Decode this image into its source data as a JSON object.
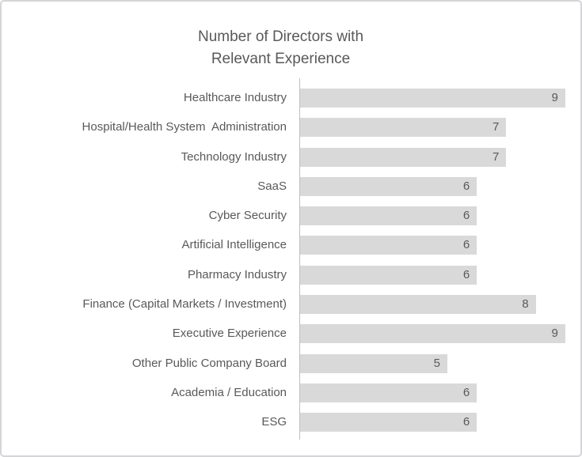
{
  "chart_data": {
    "type": "bar",
    "orientation": "horizontal",
    "title": "Number of Directors with Relevant Experience",
    "title_lines": [
      "Number of Directors with",
      "Relevant Experience"
    ],
    "categories": [
      "Healthcare Industry",
      "Hospital/Health System  Administration",
      "Technology Industry",
      "SaaS",
      "Cyber Security",
      "Artificial Intelligence",
      "Pharmacy Industry",
      "Finance (Capital Markets / Investment)",
      "Executive Experience",
      "Other Public Company Board",
      "Academia / Education",
      "ESG"
    ],
    "values": [
      9,
      7,
      7,
      6,
      6,
      6,
      6,
      8,
      9,
      5,
      6,
      6
    ],
    "xlabel": "",
    "ylabel": "",
    "xlim": [
      0,
      9.3
    ],
    "gridlines": false,
    "legend": false,
    "data_labels": "inside-end",
    "bar_color": "#d9d9d9",
    "axis_line_color": "#bfbfbf",
    "text_color": "#595959"
  }
}
